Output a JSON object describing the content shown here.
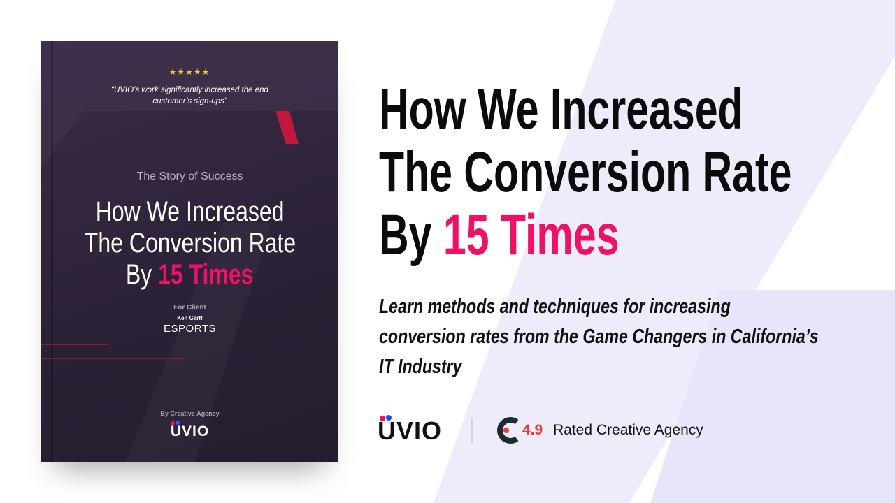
{
  "cover": {
    "quote": "“UVIO’s work significantly increased the end customer’s sign-ups”",
    "kicker": "The Story of Success",
    "title_lines": [
      "How We Increased",
      "The Conversion Rate"
    ],
    "title_prefix": "By",
    "title_highlight": "15 Times",
    "client_label": "For Client",
    "client_name": "Ken Garff",
    "client_brand": "ESPORTS",
    "agency_label": "By Creative Agency",
    "agency_name": "UVIO"
  },
  "headline": {
    "lines": [
      "How We Increased",
      "The Conversion Rate"
    ],
    "prefix": "By",
    "highlight": "15 Times"
  },
  "subtitle_lines": [
    "Learn methods and techniques for increasing",
    "conversion rates from the Game Changers in California’s",
    "IT Industry"
  ],
  "footer": {
    "logo": "UVIO",
    "rating": "4.9",
    "rating_text": "Rated Creative Agency"
  }
}
